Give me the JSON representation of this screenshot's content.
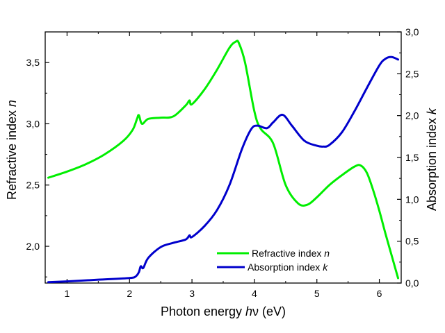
{
  "chart_data": {
    "type": "line",
    "title": "",
    "xlabel": {
      "prefix": "Photon energy ",
      "italic": "h",
      "suffix": "ν (eV)"
    },
    "ylabel_left": {
      "prefix": "Refractive index ",
      "italic": "n"
    },
    "ylabel_right": {
      "prefix": "Absorption index  ",
      "italic": "k"
    },
    "xlim": [
      0.65,
      6.35
    ],
    "ylim_left": [
      1.7,
      3.75
    ],
    "ylim_right": [
      0.0,
      3.0
    ],
    "x_ticks": [
      {
        "value": 1,
        "label": "1"
      },
      {
        "value": 2,
        "label": "2"
      },
      {
        "value": 3,
        "label": "3"
      },
      {
        "value": 4,
        "label": "4"
      },
      {
        "value": 5,
        "label": "5"
      },
      {
        "value": 6,
        "label": "6"
      }
    ],
    "y_left_ticks": [
      {
        "value": 2.0,
        "label": "2,0"
      },
      {
        "value": 2.5,
        "label": "2,5"
      },
      {
        "value": 3.0,
        "label": "3,0"
      },
      {
        "value": 3.5,
        "label": "3,5"
      }
    ],
    "y_right_ticks": [
      {
        "value": 0.0,
        "label": "0,0"
      },
      {
        "value": 0.5,
        "label": "0,5"
      },
      {
        "value": 1.0,
        "label": "1,0"
      },
      {
        "value": 1.5,
        "label": "1,5"
      },
      {
        "value": 2.0,
        "label": "2,0"
      },
      {
        "value": 2.5,
        "label": "2,5"
      },
      {
        "value": 3.0,
        "label": "3,0"
      }
    ],
    "grid": false,
    "legend_position": "bottom-right",
    "series": [
      {
        "name": "Refractive index ",
        "name_italic": "n",
        "axis": "left",
        "color": "#00ee00",
        "x": [
          0.7,
          1.0,
          1.3,
          1.6,
          1.9,
          2.05,
          2.12,
          2.15,
          2.2,
          2.3,
          2.5,
          2.7,
          2.9,
          2.96,
          3.0,
          3.2,
          3.4,
          3.6,
          3.7,
          3.75,
          3.85,
          4.0,
          4.1,
          4.3,
          4.5,
          4.7,
          4.85,
          5.0,
          5.2,
          5.4,
          5.6,
          5.7,
          5.8,
          5.9,
          6.0,
          6.1,
          6.2,
          6.3
        ],
        "y": [
          2.56,
          2.61,
          2.67,
          2.75,
          2.86,
          2.95,
          3.04,
          3.07,
          3.0,
          3.04,
          3.05,
          3.06,
          3.15,
          3.19,
          3.16,
          3.28,
          3.44,
          3.62,
          3.67,
          3.66,
          3.5,
          3.1,
          2.96,
          2.84,
          2.5,
          2.35,
          2.34,
          2.4,
          2.5,
          2.58,
          2.65,
          2.66,
          2.6,
          2.46,
          2.29,
          2.1,
          1.92,
          1.74
        ]
      },
      {
        "name": "Absorption index ",
        "name_italic": "k",
        "axis": "right",
        "color": "#0000cc",
        "x": [
          0.7,
          1.0,
          1.5,
          2.0,
          2.1,
          2.15,
          2.18,
          2.22,
          2.3,
          2.5,
          2.7,
          2.9,
          2.96,
          3.0,
          3.2,
          3.4,
          3.6,
          3.8,
          3.95,
          4.05,
          4.2,
          4.3,
          4.45,
          4.6,
          4.8,
          5.0,
          5.1,
          5.2,
          5.4,
          5.6,
          5.8,
          6.0,
          6.1,
          6.2,
          6.3
        ],
        "y": [
          0.01,
          0.02,
          0.04,
          0.06,
          0.08,
          0.13,
          0.2,
          0.18,
          0.3,
          0.43,
          0.48,
          0.52,
          0.57,
          0.55,
          0.68,
          0.87,
          1.17,
          1.6,
          1.84,
          1.88,
          1.85,
          1.92,
          2.01,
          1.88,
          1.7,
          1.64,
          1.63,
          1.65,
          1.8,
          2.05,
          2.33,
          2.6,
          2.68,
          2.7,
          2.67
        ]
      }
    ]
  }
}
